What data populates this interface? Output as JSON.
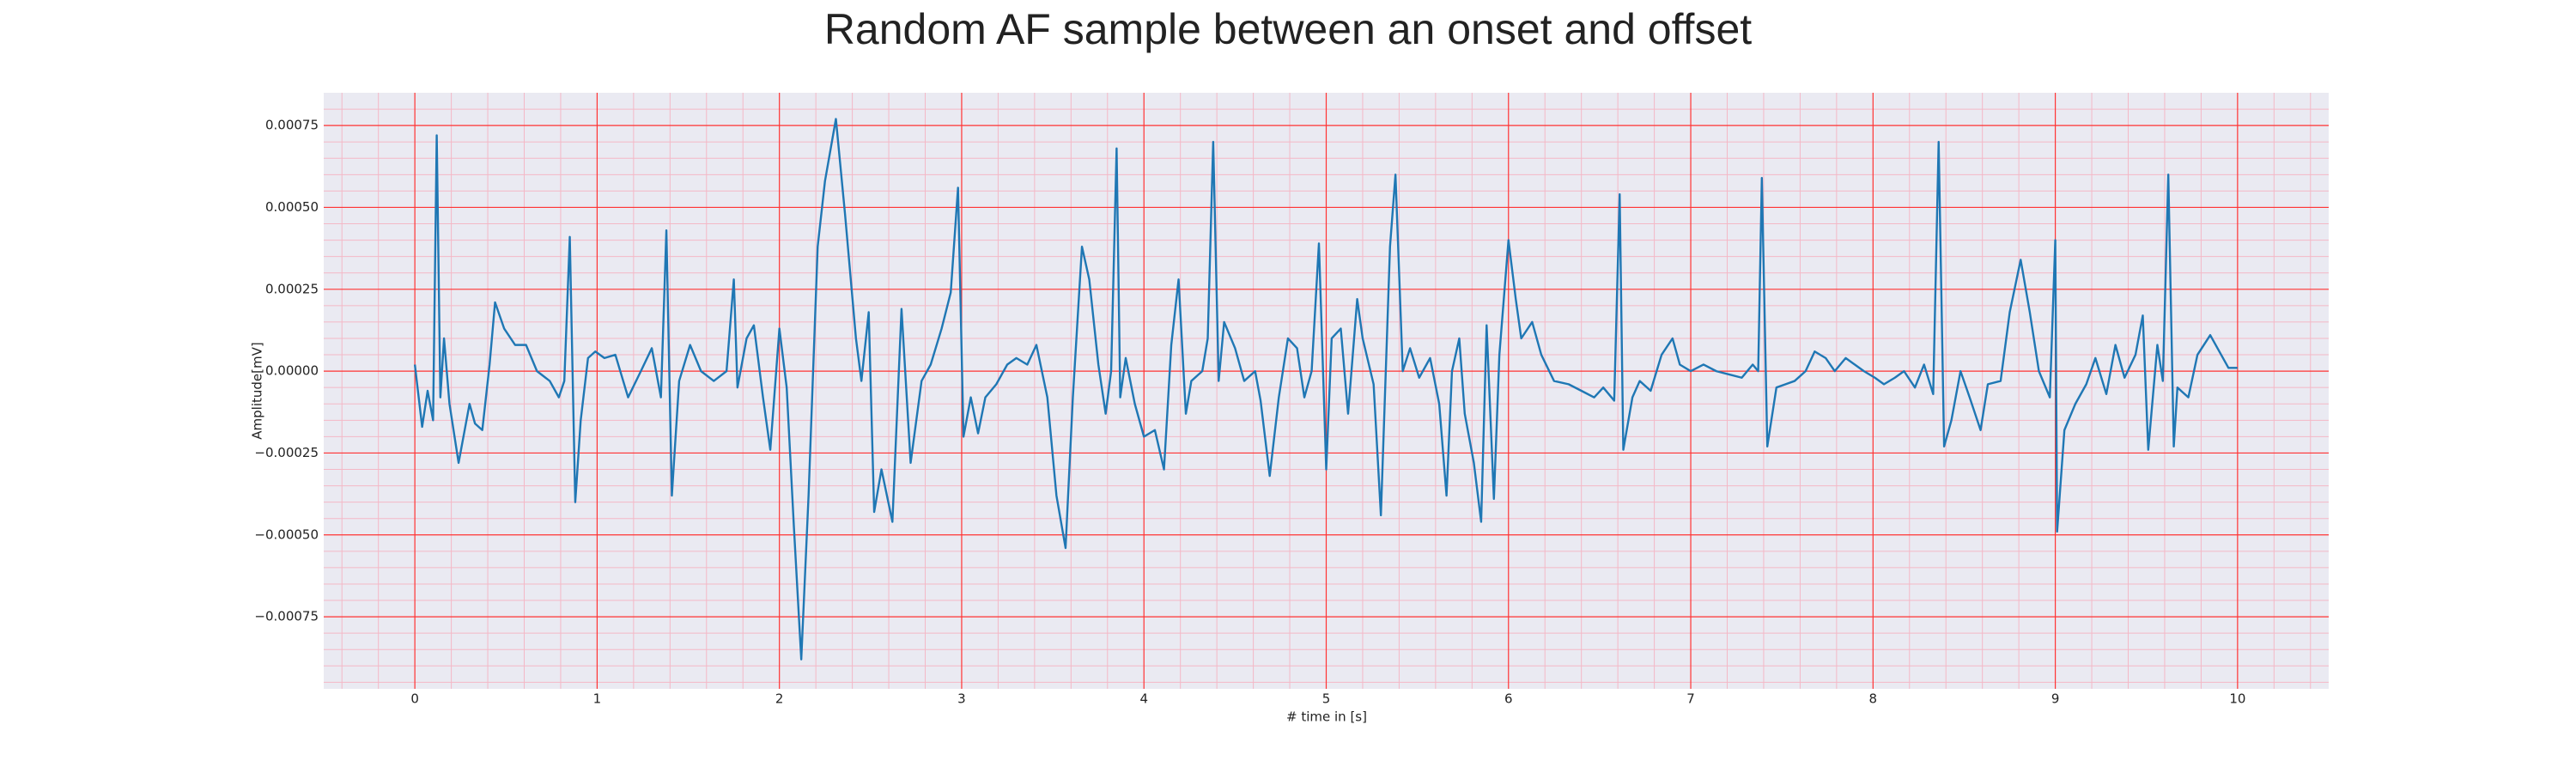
{
  "chart_data": {
    "type": "line",
    "title": "Random AF sample between an onset and offset",
    "xlabel": "# time in [s]",
    "ylabel": "Amplitude[mV]",
    "color": "#1f77b4",
    "grid": true,
    "grid_color": "#ff3333",
    "minor_grid": true,
    "minor_grid_color": "#f4b8c6",
    "background": "#eaeaf2",
    "xlim": [
      -0.5,
      10.5
    ],
    "xticks": [
      0,
      1,
      2,
      3,
      4,
      5,
      6,
      7,
      8,
      9,
      10
    ],
    "ylim": [
      -0.00097,
      0.00085
    ],
    "yticks": [
      {
        "value": -0.00075,
        "label": "−0.00075"
      },
      {
        "value": -0.0005,
        "label": "−0.00050"
      },
      {
        "value": -0.00025,
        "label": "−0.00025"
      },
      {
        "value": 0,
        "label": "0.00000"
      },
      {
        "value": 0.00025,
        "label": "0.00025"
      },
      {
        "value": 0.0005,
        "label": "0.00050"
      },
      {
        "value": 0.00075,
        "label": "0.00075"
      }
    ],
    "x": [
      0,
      0.04,
      0.07,
      0.1,
      0.12,
      0.14,
      0.16,
      0.19,
      0.24,
      0.3,
      0.33,
      0.37,
      0.41,
      0.44,
      0.49,
      0.55,
      0.61,
      0.67,
      0.74,
      0.79,
      0.82,
      0.85,
      0.88,
      0.91,
      0.95,
      0.99,
      1.04,
      1.1,
      1.17,
      1.24,
      1.3,
      1.35,
      1.38,
      1.41,
      1.45,
      1.51,
      1.57,
      1.64,
      1.71,
      1.75,
      1.77,
      1.82,
      1.86,
      1.91,
      1.95,
      2.0,
      2.04,
      2.08,
      2.12,
      2.16,
      2.21,
      2.25,
      2.31,
      2.36,
      2.42,
      2.45,
      2.49,
      2.52,
      2.56,
      2.62,
      2.67,
      2.72,
      2.78,
      2.83,
      2.89,
      2.94,
      2.98,
      3.01,
      3.05,
      3.09,
      3.13,
      3.19,
      3.25,
      3.3,
      3.36,
      3.41,
      3.47,
      3.52,
      3.57,
      3.61,
      3.66,
      3.7,
      3.75,
      3.79,
      3.82,
      3.85,
      3.87,
      3.9,
      3.95,
      4.0,
      4.06,
      4.11,
      4.15,
      4.19,
      4.23,
      4.26,
      4.32,
      4.35,
      4.38,
      4.41,
      4.44,
      4.5,
      4.55,
      4.61,
      4.64,
      4.69,
      4.74,
      4.79,
      4.84,
      4.88,
      4.92,
      4.96,
      5.0,
      5.03,
      5.08,
      5.12,
      5.17,
      5.2,
      5.26,
      5.3,
      5.35,
      5.38,
      5.42,
      5.46,
      5.51,
      5.57,
      5.62,
      5.66,
      5.69,
      5.73,
      5.76,
      5.81,
      5.85,
      5.88,
      5.92,
      5.95,
      6.0,
      6.04,
      6.07,
      6.13,
      6.18,
      6.25,
      6.33,
      6.4,
      6.47,
      6.52,
      6.58,
      6.61,
      6.63,
      6.68,
      6.72,
      6.78,
      6.84,
      6.9,
      6.94,
      7.0,
      7.07,
      7.14,
      7.21,
      7.28,
      7.34,
      7.37,
      7.39,
      7.42,
      7.47,
      7.52,
      7.57,
      7.63,
      7.68,
      7.74,
      7.79,
      7.85,
      7.9,
      7.95,
      8.01,
      8.06,
      8.12,
      8.17,
      8.23,
      8.28,
      8.33,
      8.36,
      8.39,
      8.43,
      8.48,
      8.53,
      8.59,
      8.63,
      8.7,
      8.75,
      8.81,
      8.86,
      8.91,
      8.97,
      9.0,
      9.01,
      9.05,
      9.11,
      9.17,
      9.22,
      9.28,
      9.33,
      9.38,
      9.44,
      9.48,
      9.51,
      9.56,
      9.59,
      9.62,
      9.65,
      9.67,
      9.73,
      9.78,
      9.85,
      9.91,
      9.95,
      10.0
    ],
    "values": [
      2e-05,
      -0.00017,
      -6e-05,
      -0.00015,
      0.00072,
      -8e-05,
      0.0001,
      -0.0001,
      -0.00028,
      -0.0001,
      -0.00016,
      -0.00018,
      2e-05,
      0.00021,
      0.00013,
      8e-05,
      8e-05,
      0,
      -3e-05,
      -8e-05,
      -3e-05,
      0.00041,
      -0.0004,
      -0.00015,
      4e-05,
      6e-05,
      4e-05,
      5e-05,
      -8e-05,
      0,
      7e-05,
      -8e-05,
      0.00043,
      -0.00038,
      -3e-05,
      8e-05,
      0,
      -3e-05,
      0,
      0.00028,
      -5e-05,
      0.0001,
      0.00014,
      -8e-05,
      -0.00024,
      0.00013,
      -5e-05,
      -0.00048,
      -0.00088,
      -0.00038,
      0.00038,
      0.00058,
      0.00077,
      0.00048,
      0.0001,
      -3e-05,
      0.00018,
      -0.00043,
      -0.0003,
      -0.00046,
      0.00019,
      -0.00028,
      -3e-05,
      2e-05,
      0.00013,
      0.00024,
      0.00056,
      -0.0002,
      -8e-05,
      -0.00019,
      -8e-05,
      -4e-05,
      2e-05,
      4e-05,
      2e-05,
      8e-05,
      -8e-05,
      -0.00038,
      -0.00054,
      -8e-05,
      0.00038,
      0.00028,
      2e-05,
      -0.00013,
      0,
      0.00068,
      -8e-05,
      4e-05,
      -0.0001,
      -0.0002,
      -0.00018,
      -0.0003,
      8e-05,
      0.00028,
      -0.00013,
      -3e-05,
      0,
      0.0001,
      0.0007,
      -3e-05,
      0.00015,
      7e-05,
      -3e-05,
      0,
      -9e-05,
      -0.00032,
      -8e-05,
      0.0001,
      7e-05,
      -8e-05,
      0,
      0.00039,
      -0.0003,
      0.0001,
      0.00013,
      -0.00013,
      0.00022,
      0.0001,
      -4e-05,
      -0.00044,
      0.00038,
      0.0006,
      0,
      7e-05,
      -2e-05,
      4e-05,
      -0.0001,
      -0.00038,
      0,
      0.0001,
      -0.00013,
      -0.00028,
      -0.00046,
      0.00014,
      -0.00039,
      5e-05,
      0.0004,
      0.00022,
      0.0001,
      0.00015,
      5e-05,
      -3e-05,
      -4e-05,
      -6e-05,
      -8e-05,
      -5e-05,
      -9e-05,
      0.00054,
      -0.00024,
      -8e-05,
      -3e-05,
      -6e-05,
      5e-05,
      0.0001,
      2e-05,
      0,
      2e-05,
      0,
      -1e-05,
      -2e-05,
      2e-05,
      0,
      0.00059,
      -0.00023,
      -5e-05,
      -4e-05,
      -3e-05,
      0,
      6e-05,
      4e-05,
      0,
      4e-05,
      2e-05,
      0,
      -2e-05,
      -4e-05,
      -2e-05,
      0,
      -5e-05,
      2e-05,
      -7e-05,
      0.0007,
      -0.00023,
      -0.00015,
      0,
      -8e-05,
      -0.00018,
      -4e-05,
      -3e-05,
      0.00018,
      0.00034,
      0.00018,
      0,
      -8e-05,
      0.0004,
      -0.00049,
      -0.00018,
      -0.0001,
      -4e-05,
      4e-05,
      -7e-05,
      8e-05,
      -2e-05,
      5e-05,
      0.00017,
      -0.00024,
      8e-05,
      -3e-05,
      0.0006,
      -0.00023,
      -5e-05,
      -8e-05,
      5e-05,
      0.00011,
      5e-05,
      1e-05,
      1e-05
    ]
  }
}
